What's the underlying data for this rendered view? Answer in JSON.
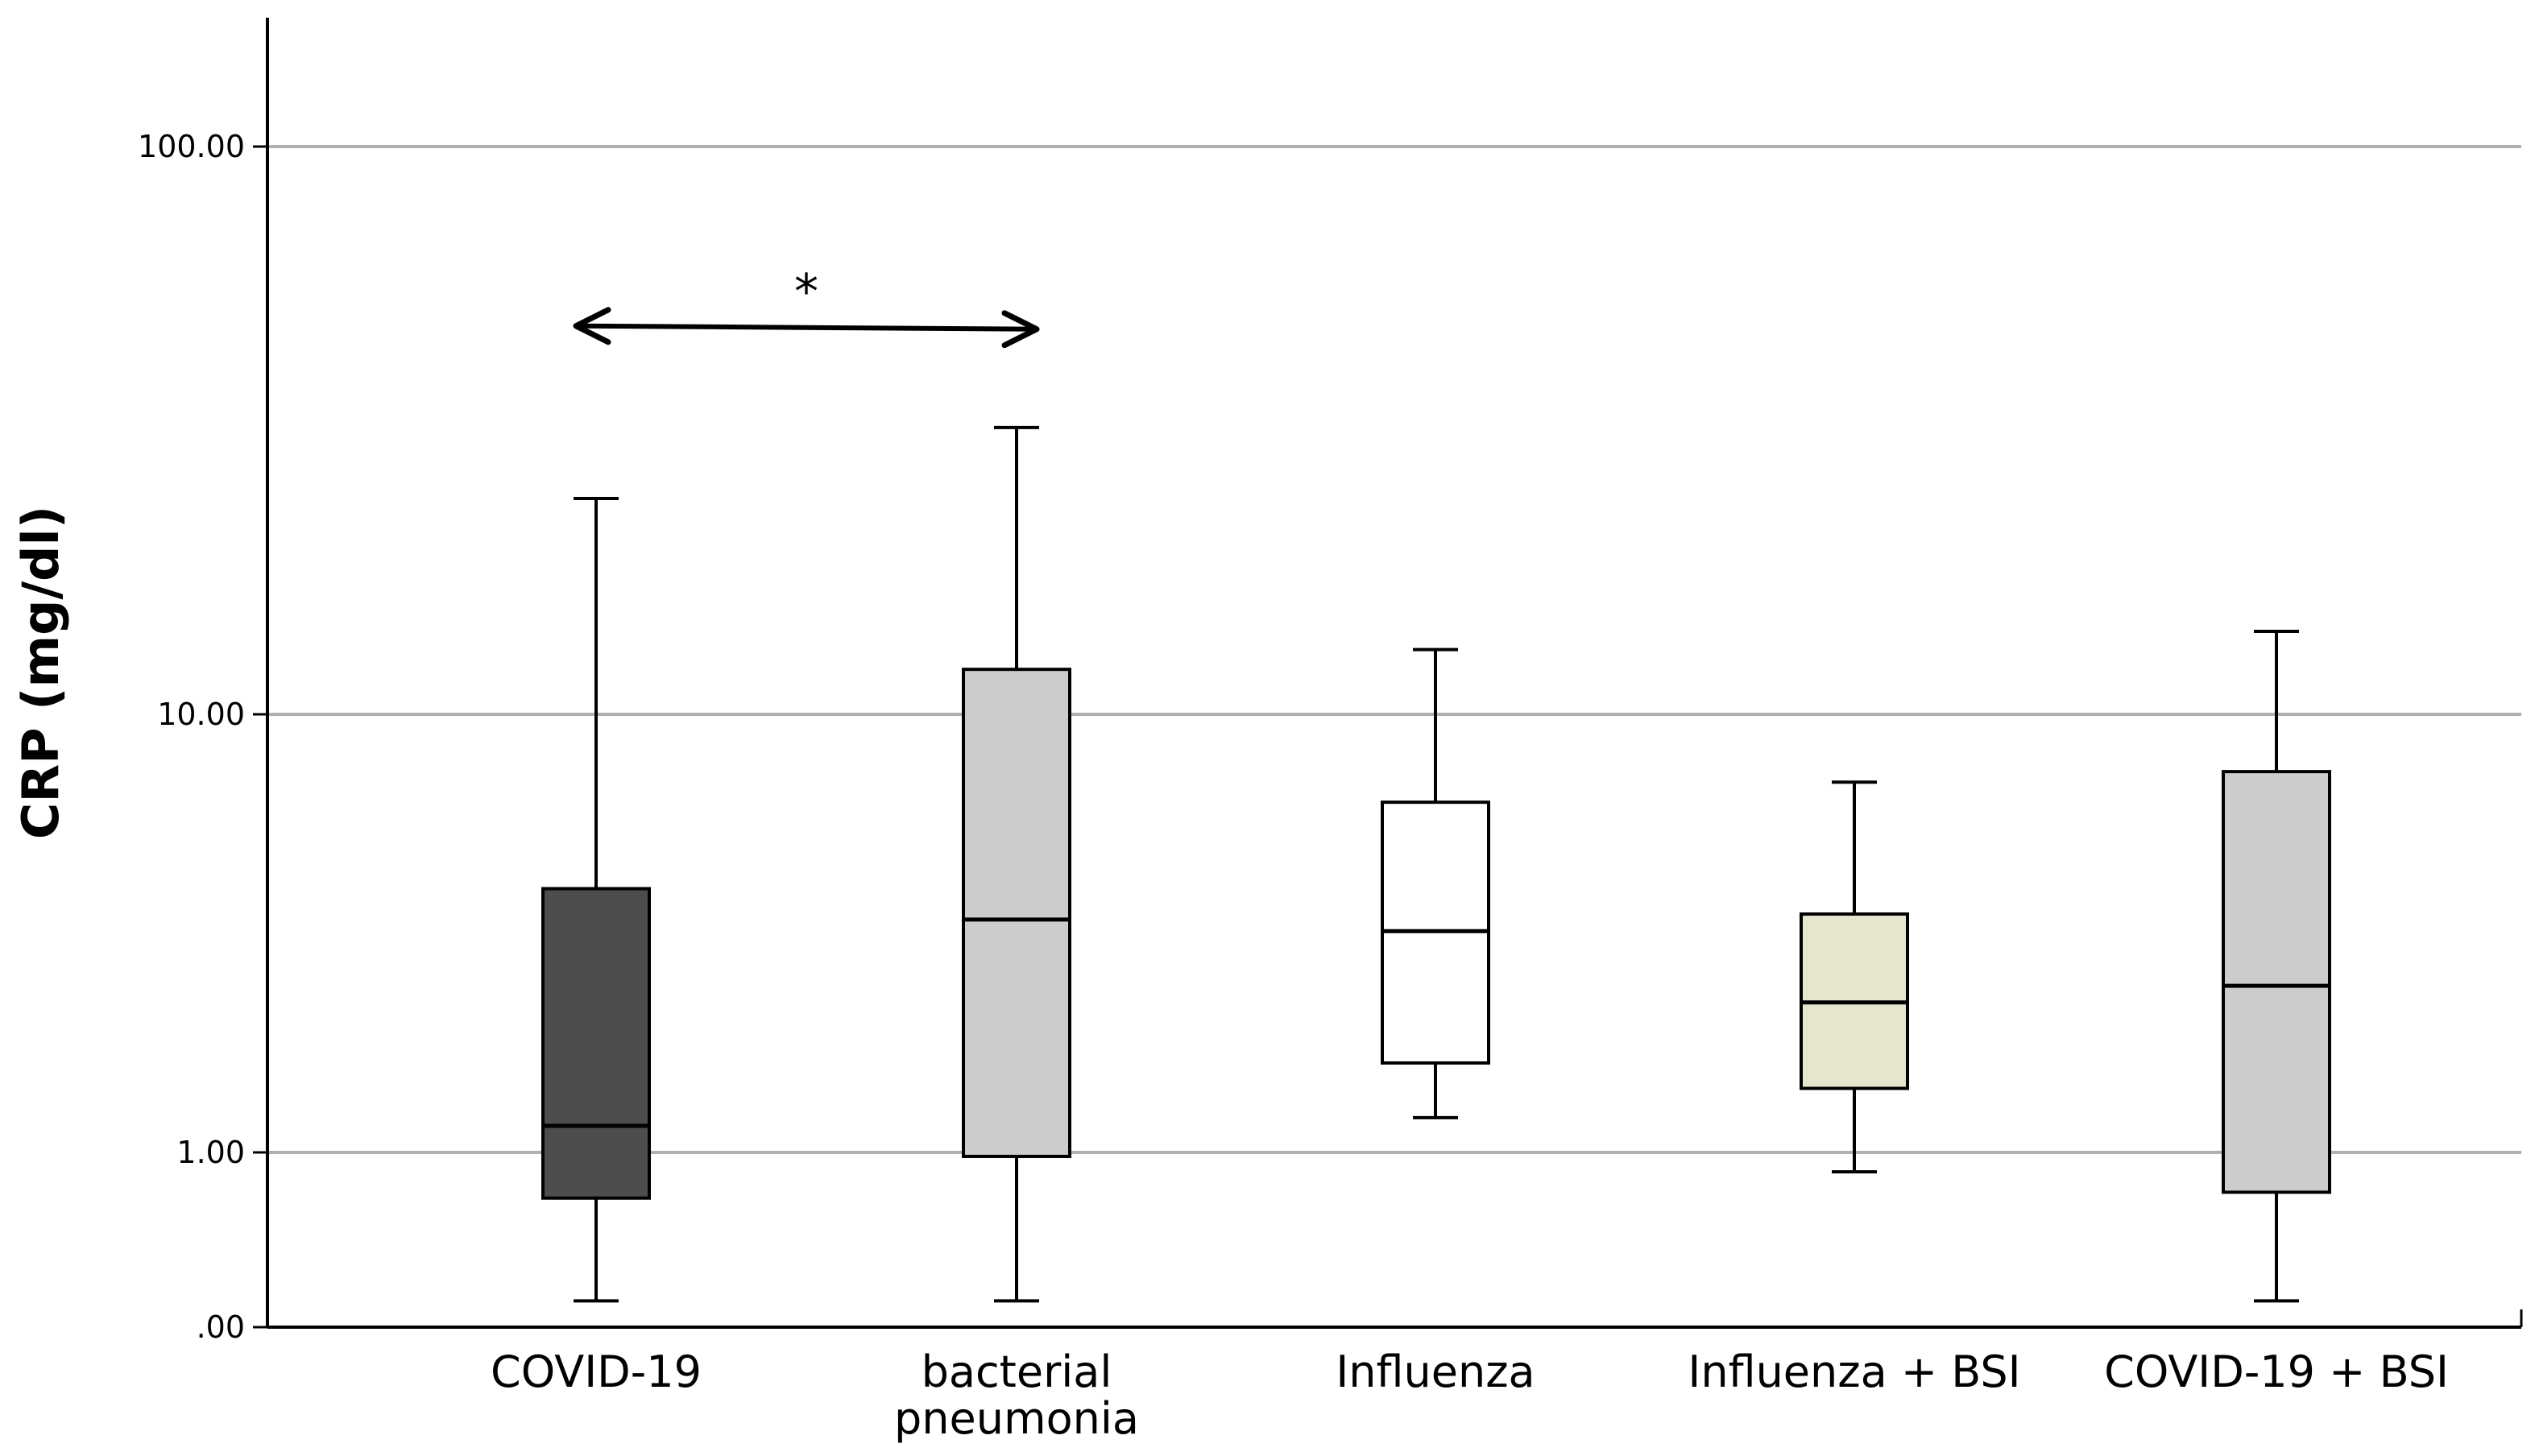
{
  "chart_data": {
    "type": "box",
    "ylabel": "CRP (mg/dl)",
    "yscale": "log",
    "grid": true,
    "y_ticks": [
      {
        "value": 0.01,
        "label": ".00"
      },
      {
        "value": 1,
        "label": "1.00"
      },
      {
        "value": 10,
        "label": "10.00"
      },
      {
        "value": 100,
        "label": "100.00"
      }
    ],
    "categories": [
      "COVID-19",
      "bacterial pneumonia",
      "Influenza",
      "Influenza + BSI",
      "COVID-19 + BSI"
    ],
    "category_label_lines": [
      [
        "COVID-19"
      ],
      [
        "bacterial",
        "pneumonia"
      ],
      [
        "Influenza"
      ],
      [
        "Influenza + BSI"
      ],
      [
        "COVID-19 + BSI"
      ]
    ],
    "boxes": [
      {
        "category": "COVID-19",
        "whisker_low": 0.02,
        "q1": 0.3,
        "median": 1.15,
        "q3": 4.0,
        "whisker_high": 24.0,
        "color": "#4d4d4d"
      },
      {
        "category": "bacterial pneumonia",
        "whisker_low": 0.02,
        "q1": 0.9,
        "median": 3.4,
        "q3": 12.0,
        "whisker_high": 32.0,
        "color": "#cccccc"
      },
      {
        "category": "Influenza",
        "whisker_low": 1.2,
        "q1": 1.6,
        "median": 3.2,
        "q3": 6.3,
        "whisker_high": 13.0,
        "color": "#ffffff"
      },
      {
        "category": "Influenza + BSI",
        "whisker_low": 0.6,
        "q1": 1.4,
        "median": 2.2,
        "q3": 3.5,
        "whisker_high": 7.0,
        "color": "#e6e5cd"
      },
      {
        "category": "COVID-19 + BSI",
        "whisker_low": 0.02,
        "q1": 0.35,
        "median": 2.4,
        "q3": 7.4,
        "whisker_high": 14.0,
        "color": "#cccccc"
      }
    ],
    "annotations": [
      {
        "type": "significance",
        "from": "COVID-19",
        "to": "bacterial pneumonia",
        "label": "*",
        "y": 48
      }
    ]
  }
}
